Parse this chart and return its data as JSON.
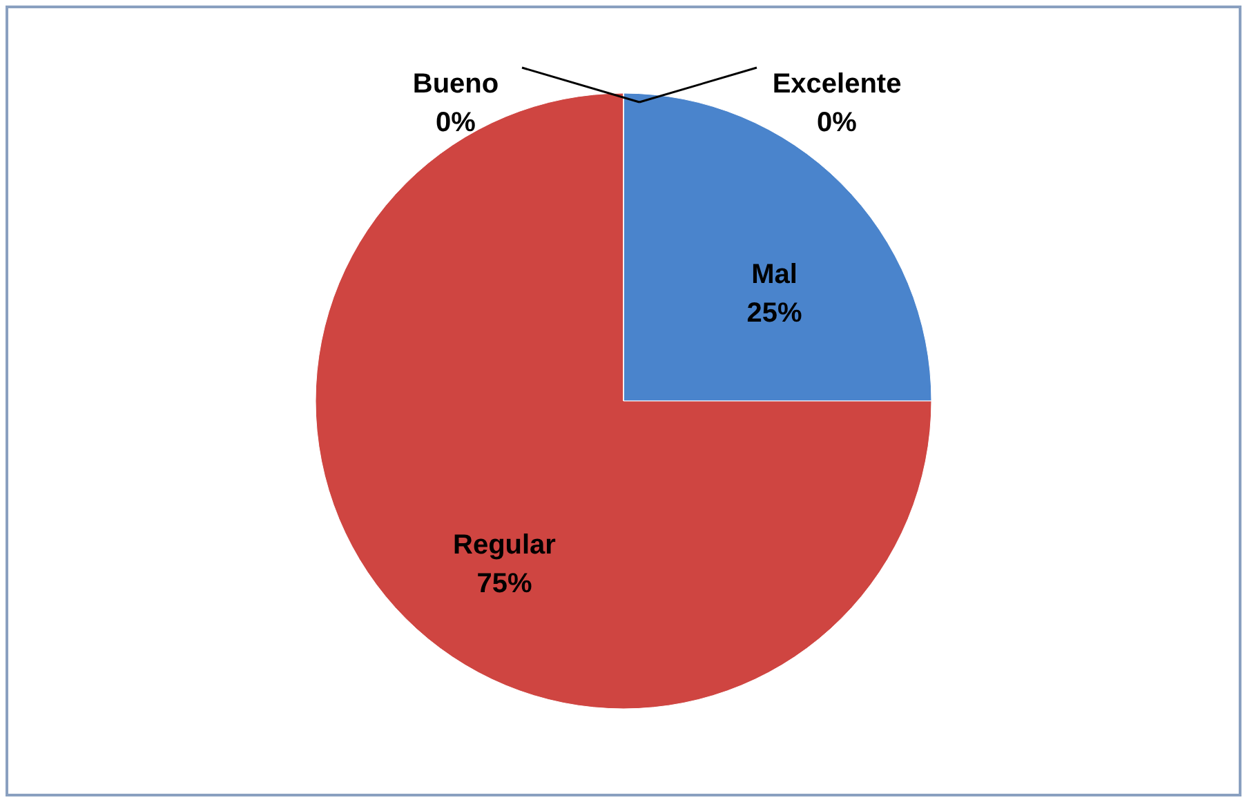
{
  "chart_data": {
    "type": "pie",
    "categories": [
      "Excelente",
      "Mal",
      "Regular",
      "Bueno"
    ],
    "values": [
      0,
      25,
      75,
      0
    ],
    "colors": [
      "#9bbb59",
      "#4a84cc",
      "#cf4541",
      "#8064a2"
    ],
    "value_labels": [
      "0%",
      "25%",
      "75%",
      "0%"
    ]
  }
}
